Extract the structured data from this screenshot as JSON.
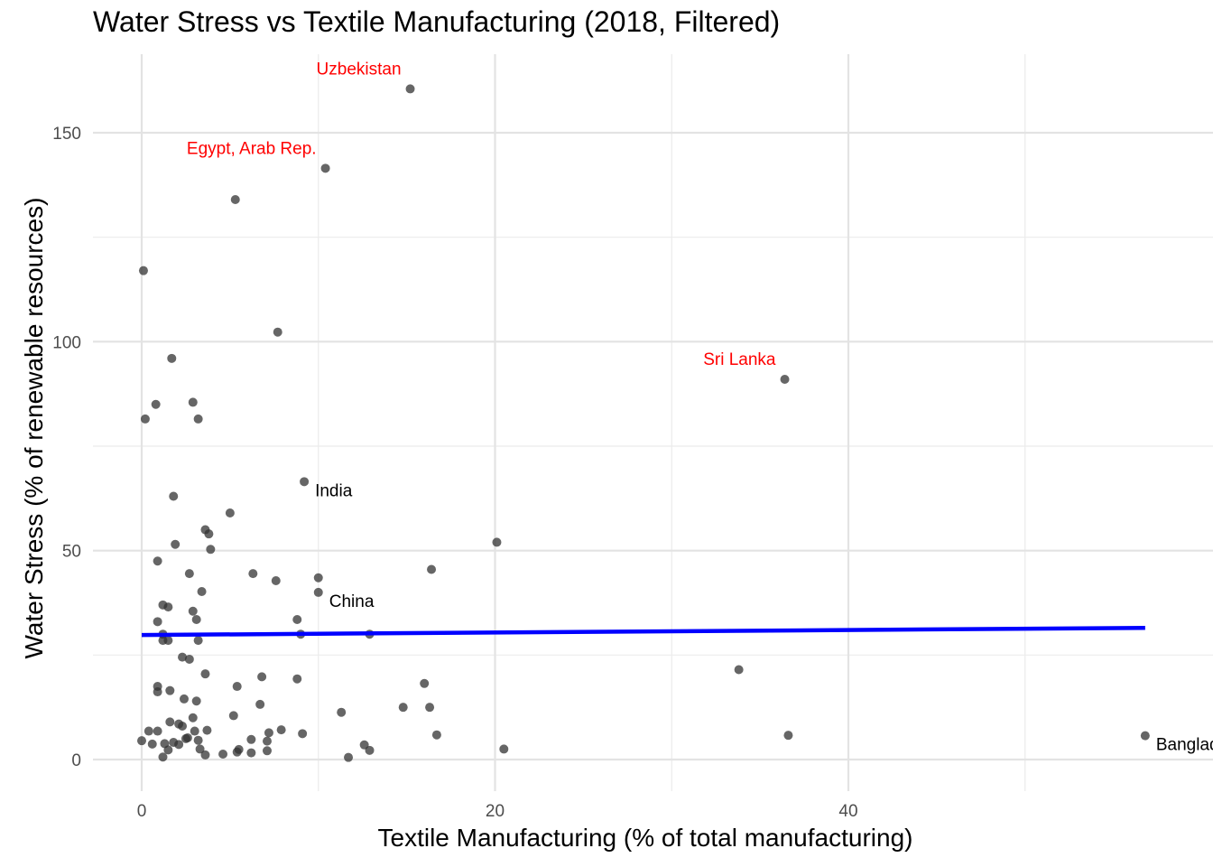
{
  "chart_data": {
    "type": "scatter",
    "title": "Water Stress vs Textile Manufacturing (2018, Filtered)",
    "xlabel": "Textile Manufacturing (% of total manufacturing)",
    "ylabel": "Water Stress (% of renewable resources)",
    "xlim": [
      -3,
      59
    ],
    "ylim": [
      -5,
      168
    ],
    "x_ticks": [
      0,
      20,
      40
    ],
    "y_ticks": [
      0,
      50,
      100,
      150
    ],
    "x_minor": [
      10,
      30,
      50
    ],
    "y_minor": [
      25,
      75,
      125
    ],
    "grid": true,
    "point_color": "#333333",
    "trend_color": "#0000ff",
    "trend_line": {
      "x": [
        0,
        56.8
      ],
      "y": [
        29.8,
        31.5
      ]
    },
    "labels": [
      {
        "text": "Uzbekistan",
        "color": "#ff0000",
        "x": 15.2,
        "y": 160.5,
        "anchor": "end"
      },
      {
        "text": "Egypt, Arab Rep.",
        "color": "#ff0000",
        "x": 10.4,
        "y": 141.5,
        "anchor": "end"
      },
      {
        "text": "Sri Lanka",
        "color": "#ff0000",
        "x": 36.4,
        "y": 91,
        "anchor": "end"
      },
      {
        "text": "India",
        "color": "#000000",
        "x": 9.2,
        "y": 66.5,
        "anchor": "start"
      },
      {
        "text": "China",
        "color": "#000000",
        "x": 10,
        "y": 40,
        "anchor": "start"
      },
      {
        "text": "Bangladesh",
        "color": "#000000",
        "x": 56.8,
        "y": 5.7,
        "anchor": "start"
      }
    ],
    "points": [
      {
        "x": 15.2,
        "y": 160.5
      },
      {
        "x": 10.4,
        "y": 141.5
      },
      {
        "x": 5.3,
        "y": 134
      },
      {
        "x": 0.1,
        "y": 117
      },
      {
        "x": 7.7,
        "y": 102.3
      },
      {
        "x": 1.7,
        "y": 96
      },
      {
        "x": 36.4,
        "y": 91
      },
      {
        "x": 0.8,
        "y": 85
      },
      {
        "x": 2.9,
        "y": 85.5
      },
      {
        "x": 0.2,
        "y": 81.5
      },
      {
        "x": 3.2,
        "y": 81.5
      },
      {
        "x": 9.2,
        "y": 66.5
      },
      {
        "x": 1.8,
        "y": 63
      },
      {
        "x": 5,
        "y": 59
      },
      {
        "x": 3.6,
        "y": 55
      },
      {
        "x": 3.8,
        "y": 54
      },
      {
        "x": 20.1,
        "y": 52
      },
      {
        "x": 1.9,
        "y": 51.5
      },
      {
        "x": 3.9,
        "y": 50.3
      },
      {
        "x": 0.9,
        "y": 47.5
      },
      {
        "x": 16.4,
        "y": 45.5
      },
      {
        "x": 2.7,
        "y": 44.5
      },
      {
        "x": 6.3,
        "y": 44.5
      },
      {
        "x": 10,
        "y": 43.5
      },
      {
        "x": 7.6,
        "y": 42.8
      },
      {
        "x": 10,
        "y": 40
      },
      {
        "x": 3.4,
        "y": 40.2
      },
      {
        "x": 1.2,
        "y": 37
      },
      {
        "x": 1.5,
        "y": 36.5
      },
      {
        "x": 2.9,
        "y": 35.5
      },
      {
        "x": 0.9,
        "y": 33
      },
      {
        "x": 3.1,
        "y": 33.5
      },
      {
        "x": 8.8,
        "y": 33.5
      },
      {
        "x": 1.2,
        "y": 30
      },
      {
        "x": 9,
        "y": 30
      },
      {
        "x": 12.9,
        "y": 30
      },
      {
        "x": 1.2,
        "y": 28.5
      },
      {
        "x": 1.5,
        "y": 28.5
      },
      {
        "x": 3.2,
        "y": 28.5
      },
      {
        "x": 2.3,
        "y": 24.5
      },
      {
        "x": 2.7,
        "y": 24
      },
      {
        "x": 33.8,
        "y": 21.5
      },
      {
        "x": 3.6,
        "y": 20.5
      },
      {
        "x": 6.8,
        "y": 19.8
      },
      {
        "x": 8.8,
        "y": 19.3
      },
      {
        "x": 16,
        "y": 18.2
      },
      {
        "x": 0.9,
        "y": 17.5
      },
      {
        "x": 5.4,
        "y": 17.5
      },
      {
        "x": 1.6,
        "y": 16.5
      },
      {
        "x": 0.9,
        "y": 16.2
      },
      {
        "x": 2.4,
        "y": 14.5
      },
      {
        "x": 3.1,
        "y": 14
      },
      {
        "x": 6.7,
        "y": 13.2
      },
      {
        "x": 14.8,
        "y": 12.5
      },
      {
        "x": 16.3,
        "y": 12.5
      },
      {
        "x": 11.3,
        "y": 11.3
      },
      {
        "x": 5.2,
        "y": 10.5
      },
      {
        "x": 2.9,
        "y": 10
      },
      {
        "x": 1.6,
        "y": 9
      },
      {
        "x": 2.1,
        "y": 8.5
      },
      {
        "x": 2.3,
        "y": 8
      },
      {
        "x": 0.4,
        "y": 6.8
      },
      {
        "x": 0.9,
        "y": 6.8
      },
      {
        "x": 3,
        "y": 6.8
      },
      {
        "x": 3.7,
        "y": 7
      },
      {
        "x": 7.2,
        "y": 6.4
      },
      {
        "x": 7.9,
        "y": 7.1
      },
      {
        "x": 9.1,
        "y": 6.2
      },
      {
        "x": 16.7,
        "y": 5.9
      },
      {
        "x": 36.6,
        "y": 5.8
      },
      {
        "x": 56.8,
        "y": 5.7
      },
      {
        "x": 2.5,
        "y": 5
      },
      {
        "x": 2.6,
        "y": 5.2
      },
      {
        "x": 3.2,
        "y": 4.6
      },
      {
        "x": 6.2,
        "y": 4.8
      },
      {
        "x": 7.1,
        "y": 4.4
      },
      {
        "x": 0,
        "y": 4.5
      },
      {
        "x": 0.6,
        "y": 3.7
      },
      {
        "x": 1.8,
        "y": 4.1
      },
      {
        "x": 1.3,
        "y": 3.8
      },
      {
        "x": 2.1,
        "y": 3.6
      },
      {
        "x": 12.6,
        "y": 3.5
      },
      {
        "x": 3.3,
        "y": 2.5
      },
      {
        "x": 1.5,
        "y": 2.3
      },
      {
        "x": 5.5,
        "y": 2.4
      },
      {
        "x": 7.1,
        "y": 2.1
      },
      {
        "x": 12.9,
        "y": 2.2
      },
      {
        "x": 20.5,
        "y": 2.5
      },
      {
        "x": 5.4,
        "y": 1.8
      },
      {
        "x": 6.2,
        "y": 1.6
      },
      {
        "x": 4.6,
        "y": 1.3
      },
      {
        "x": 3.6,
        "y": 1.1
      },
      {
        "x": 11.7,
        "y": 0.5
      },
      {
        "x": 1.2,
        "y": 0.6
      }
    ]
  }
}
